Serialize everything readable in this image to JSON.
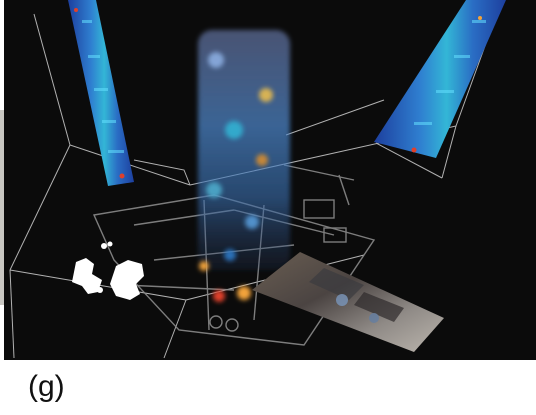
{
  "figure": {
    "caption": "(g)",
    "colors": {
      "background": "#0b0b0b",
      "wireframe": "#cfcfcf",
      "floorplan": "#8a8a8a",
      "heat_low": "#1d3f9e",
      "heat_mid": "#33b6d6",
      "heat_high": "#f2a33a",
      "heat_peak": "#e0402b",
      "mask": "#ffffff"
    }
  }
}
